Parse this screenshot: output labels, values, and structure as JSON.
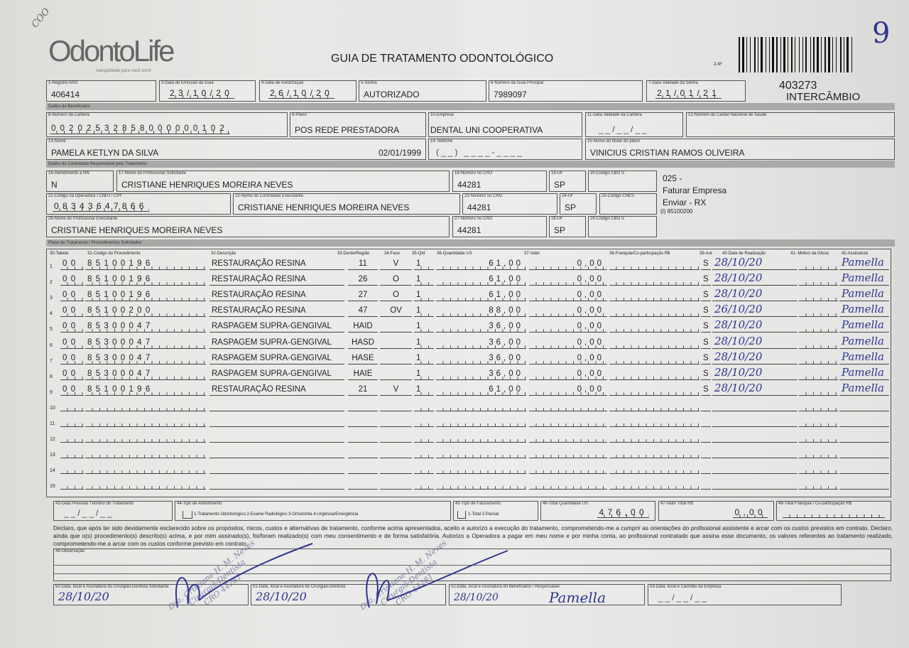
{
  "header": {
    "logo": "OdontoLife",
    "logo_tagline": "tranquilidade para você sorrir",
    "title": "GUIA DE TRATAMENTO ODONTOLÓGICO",
    "guide_number_label": "2-Nº",
    "corner_handwritten": "9",
    "corner_mark": "COO",
    "number": "403273",
    "type": "INTERCÂMBIO"
  },
  "guide": {
    "registro_ans": {
      "label": "1-Registro ANS",
      "value": "406414"
    },
    "data_emissao": {
      "label": "3-Data de Emissão da Guia",
      "value": "23/10/20"
    },
    "data_autorizacao": {
      "label": "4-Data de Autorização",
      "value": "26/10/20"
    },
    "senha": {
      "label": "5-Senha",
      "value": "AUTORIZADO"
    },
    "guia_principal": {
      "label": "6-Número da Guia Principal",
      "value": "7989097"
    },
    "validade_senha": {
      "label": "7-Data Validade da Senha",
      "value": "21/01/21"
    }
  },
  "beneficiario": {
    "section": "Dados do Beneficiário",
    "carteira": {
      "label": "8-Número da Carteira",
      "value": "00202532858000000102"
    },
    "plano": {
      "label": "9-Plano",
      "value": "POS REDE PRESTADORA"
    },
    "empresa": {
      "label": "10-Empresa",
      "value": "DENTAL UNI  COOPERATIVA"
    },
    "validade_carteira": {
      "label": "11-Data Validade da Carteira",
      "value": "__/__/__"
    },
    "cns": {
      "label": "12-Número do Cartão Nacional de Saúde",
      "value": ""
    },
    "nome": {
      "label": "13-Nome",
      "value": "PAMELA KETLYN DA SILVA",
      "birth": "02/01/1999"
    },
    "telefone": {
      "label": "14-Telefone",
      "value": "(__) ____-____"
    },
    "titular": {
      "label": "15-Nome do titular do plano",
      "value": "VINICIUS CRISTIAN RAMOS OLIVEIRA"
    }
  },
  "contratado": {
    "section": "Dados do Contratado Responsável pelo Tratamento",
    "rn": {
      "label": "16-Atendimento a RN",
      "value": "N"
    },
    "solicitante": {
      "label": "17-Nome do Profissional Solicitante",
      "value": "CRISTIANE HENRIQUES MOREIRA NEVES"
    },
    "cro18": {
      "label": "18-Número no CRO",
      "value": "44281"
    },
    "uf19": {
      "label": "19-UF",
      "value": "SP"
    },
    "cbo20": {
      "label": "20-Código CBO S",
      "value": ""
    },
    "cnpj": {
      "label": "21-Código na Operadora / CNPJ / CPF",
      "value": "08343647866"
    },
    "executante_contratado": {
      "label": "22-Nome do Contratado Executante",
      "value": "CRISTIANE HENRIQUES MOREIRA NEVES"
    },
    "cro23": {
      "label": "23-Número no CRO",
      "value": "44281"
    },
    "uf24": {
      "label": "24-UF",
      "value": "SP"
    },
    "cnes": {
      "label": "25-Código CNES",
      "value": ""
    },
    "executante": {
      "label": "26-Nome do Profissional Executante",
      "value": "CRISTIANE HENRIQUES MOREIRA NEVES"
    },
    "cro27": {
      "label": "27-Número no CRO",
      "value": "44281"
    },
    "uf28": {
      "label": "28-UF",
      "value": "SP"
    },
    "cbo29": {
      "label": "29-Código CBO S",
      "value": ""
    },
    "notes": [
      "025 -",
      "Faturar Empresa",
      "Enviar - RX",
      "(I) 85100200"
    ]
  },
  "procedures": {
    "section": "Plano de Tratamento / Procedimentos Solicitados",
    "headers": [
      "30-Tabela",
      "31-Código do Procedimento",
      "32-Descrição",
      "33-Dente/Região",
      "34-Face",
      "35-Qtd",
      "36-Quantidade US",
      "37-Valor",
      "38-Franquia/Co-participação R$",
      "39-Aut",
      "40-Data de Realização",
      "41- Motivo da Glosa",
      "42-Assinatura"
    ],
    "rows": [
      {
        "n": "1",
        "tabela": "00",
        "codigo": "85100196",
        "descricao": "RESTAURAÇÃO RESINA",
        "dente": "11",
        "face": "V",
        "qtd": "1",
        "quant_us": "61,00",
        "valor": "0,00",
        "franquia": "",
        "aut": "S",
        "data": "28/10/20",
        "glosa": "",
        "assinatura": "Pamella"
      },
      {
        "n": "2",
        "tabela": "00",
        "codigo": "85100196",
        "descricao": "RESTAURAÇÃO RESINA",
        "dente": "26",
        "face": "O",
        "qtd": "1",
        "quant_us": "61,00",
        "valor": "0,00",
        "franquia": "",
        "aut": "S",
        "data": "28/10/20",
        "glosa": "",
        "assinatura": "Pamella"
      },
      {
        "n": "3",
        "tabela": "00",
        "codigo": "85100196",
        "descricao": "RESTAURAÇÃO RESINA",
        "dente": "27",
        "face": "O",
        "qtd": "1",
        "quant_us": "61,00",
        "valor": "0,00",
        "franquia": "",
        "aut": "S",
        "data": "28/10/20",
        "glosa": "",
        "assinatura": "Pamella"
      },
      {
        "n": "4",
        "tabela": "00",
        "codigo": "85100200",
        "descricao": "RESTAURAÇÃO RESINA",
        "dente": "47",
        "face": "OV",
        "qtd": "1",
        "quant_us": "88,00",
        "valor": "0,00",
        "franquia": "",
        "aut": "S",
        "data": "26/10/20",
        "glosa": "",
        "assinatura": "Pamella"
      },
      {
        "n": "5",
        "tabela": "00",
        "codigo": "85300047",
        "descricao": "RASPAGEM SUPRA-GENGIVAL",
        "dente": "HAID",
        "face": "",
        "qtd": "1",
        "quant_us": "36,00",
        "valor": "0,00",
        "franquia": "",
        "aut": "S",
        "data": "28/10/20",
        "glosa": "",
        "assinatura": "Pamella"
      },
      {
        "n": "6",
        "tabela": "00",
        "codigo": "85300047",
        "descricao": "RASPAGEM SUPRA-GENGIVAL",
        "dente": "HASD",
        "face": "",
        "qtd": "1",
        "quant_us": "36,00",
        "valor": "0,00",
        "franquia": "",
        "aut": "S",
        "data": "28/10/20",
        "glosa": "",
        "assinatura": "Pamella"
      },
      {
        "n": "7",
        "tabela": "00",
        "codigo": "85300047",
        "descricao": "RASPAGEM SUPRA-GENGIVAL",
        "dente": "HASE",
        "face": "",
        "qtd": "1",
        "quant_us": "36,00",
        "valor": "0,00",
        "franquia": "",
        "aut": "S",
        "data": "28/10/20",
        "glosa": "",
        "assinatura": "Pamella"
      },
      {
        "n": "8",
        "tabela": "00",
        "codigo": "85300047",
        "descricao": "RASPAGEM SUPRA-GENGIVAL",
        "dente": "HAIE",
        "face": "",
        "qtd": "1",
        "quant_us": "36,00",
        "valor": "0,00",
        "franquia": "",
        "aut": "S",
        "data": "28/10/20",
        "glosa": "",
        "assinatura": "Pamella"
      },
      {
        "n": "9",
        "tabela": "00",
        "codigo": "85100196",
        "descricao": "RESTAURAÇÃO RESINA",
        "dente": "21",
        "face": "V",
        "qtd": "1",
        "quant_us": "61,00",
        "valor": "0,00",
        "franquia": "",
        "aut": "S",
        "data": "28/10/20",
        "glosa": "",
        "assinatura": "Pamella"
      },
      {
        "n": "10"
      },
      {
        "n": "11"
      },
      {
        "n": "12"
      },
      {
        "n": "13"
      },
      {
        "n": "14"
      },
      {
        "n": "15"
      }
    ]
  },
  "totals": {
    "previsao": {
      "label": "43-Data Previsão Término do Tratamento",
      "value": "__/__/__"
    },
    "tipo_atendimento": {
      "label": "44-Tipo de Atendimento",
      "options": "1-Tratamento Odontológico  2-Exame Radiológico  3-Ortodontia  4-Urgência/Emergência"
    },
    "faturamento": {
      "label": "45-Tipo de Faturamento",
      "options": "1-Total  2-Parcial"
    },
    "quantidade_us": {
      "label": "46-Total Quantidade US",
      "value": "476,00"
    },
    "valor_total": {
      "label": "47-Valor Total R$",
      "value": "0,00"
    },
    "franquia": {
      "label": "48-Total Franquia / Co-participação R$",
      "value": ""
    }
  },
  "declaration": "Declaro, que após ter sido devidamente esclarecido sobre os propósitos, riscos, custos e alternativas de tratamento, conforme acima apresentados, aceito e autorizo a execução do tratamento, comprometendo-me a cumprir as orientações do profissional assistente e arcar com os custos previstos em contrato. Declaro, ainda que o(s) procedimento(s) descrito(s) acima, e por mim assinado(s), foi/foram realizado(s) com meu consentimento e de forma satisfatória. Autorizo a Operadora a pagar em meu nome e por minha conta, ao profissional contratado que assina esse documento, os valores referentes ao tratamento realizado, comprometendo-me a arcar com os custos conforme previsto em contrato.",
  "observacao": {
    "label": "49-Observação",
    "value": ""
  },
  "signatures": {
    "s50": {
      "label": "50-Data, local e Assinatura do Cirurgião-Dentista Solicitante",
      "date": "28/10/20"
    },
    "s51": {
      "label": "51-Data, local e Assinatura do Cirurgião-Dentista",
      "date": "28/10/20"
    },
    "s52": {
      "label": "52-Data, local e Assinatura do Beneficiário / Responsável",
      "date": "28/10/20",
      "signature": "Pamella"
    },
    "s53": {
      "label": "53-Data, local e Carimbo da Empresa",
      "date": "__/__/__"
    },
    "stamp": [
      "Dra. Cristiane H. M. Neves",
      "Cirurgiã-Dentista",
      "CRO 44281"
    ]
  },
  "colors": {
    "ink": "#2f3590",
    "section_bar": "#a9a9a7",
    "stamp": "#6a6a9a"
  }
}
